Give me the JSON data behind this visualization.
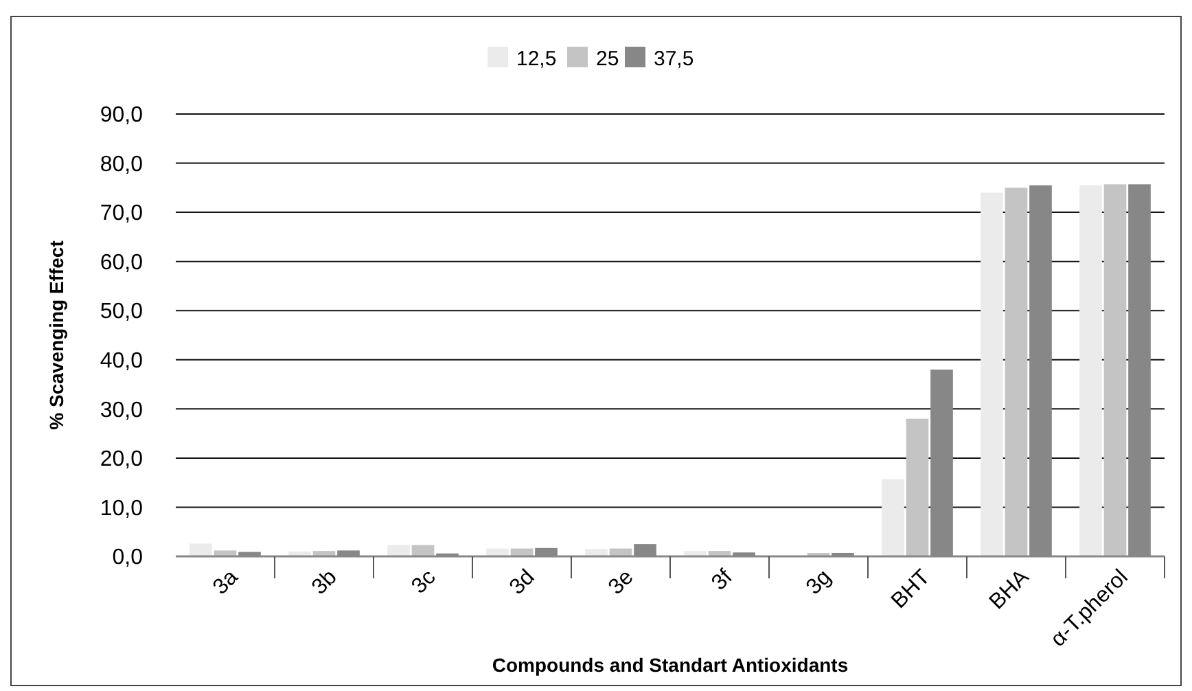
{
  "chart_data": {
    "type": "bar",
    "xlabel": "Compounds and Standart Antioxidants",
    "ylabel": "% Scavenging Effect",
    "categories": [
      "3a",
      "3b",
      "3c",
      "3d",
      "3e",
      "3f",
      "3g",
      "BHT",
      "BHA",
      "α-T.pherol"
    ],
    "series": [
      {
        "name": "12,5",
        "color": "#ebebeb",
        "values": [
          2.6,
          1.0,
          2.3,
          1.6,
          1.5,
          1.1,
          0,
          15.7,
          74.0,
          75.5
        ]
      },
      {
        "name": "25",
        "color": "#c4c4c4",
        "values": [
          1.2,
          1.1,
          2.3,
          1.6,
          1.6,
          1.1,
          0.7,
          28.0,
          75.0,
          75.7
        ]
      },
      {
        "name": "37,5",
        "color": "#878787",
        "values": [
          0.9,
          1.2,
          0.6,
          1.7,
          2.5,
          0.8,
          0.7,
          38.0,
          75.5,
          75.7
        ]
      }
    ],
    "ylim": [
      0,
      90
    ],
    "yticks": [
      {
        "value": 0,
        "label": "0,0"
      },
      {
        "value": 10,
        "label": "10,0"
      },
      {
        "value": 20,
        "label": "20,0"
      },
      {
        "value": 30,
        "label": "30,0"
      },
      {
        "value": 40,
        "label": "40,0"
      },
      {
        "value": 50,
        "label": "50,0"
      },
      {
        "value": 60,
        "label": "60,0"
      },
      {
        "value": 70,
        "label": "70,0"
      },
      {
        "value": 80,
        "label": "80,0"
      },
      {
        "value": 90,
        "label": "90,0"
      }
    ],
    "grid": "y",
    "legend": "top"
  }
}
